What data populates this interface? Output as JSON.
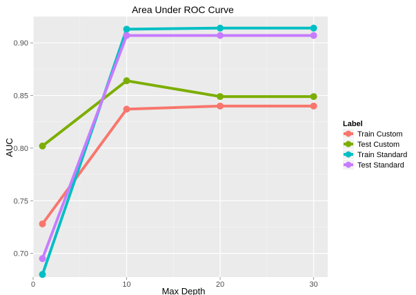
{
  "chart_data": {
    "type": "line",
    "title": "Area Under ROC Curve",
    "xlabel": "Max Depth",
    "ylabel": "AUC",
    "x": [
      1,
      10,
      20,
      30
    ],
    "xlim": [
      0,
      31.5
    ],
    "ylim": [
      0.6775,
      0.925
    ],
    "x_ticks": [
      0,
      10,
      20,
      30
    ],
    "x_tick_labels": [
      "0",
      "10",
      "20",
      "30"
    ],
    "y_ticks": [
      0.7,
      0.75,
      0.8,
      0.85,
      0.9
    ],
    "y_tick_labels": [
      "0.70",
      "0.75",
      "0.80",
      "0.85",
      "0.90"
    ],
    "grid": true,
    "legend": {
      "title": "Label",
      "position": "right"
    },
    "series": [
      {
        "name": "Train Custom",
        "color": "#F8766D",
        "values": [
          0.728,
          0.837,
          0.84,
          0.84
        ]
      },
      {
        "name": "Test Custom",
        "color": "#7CAE00",
        "values": [
          0.802,
          0.864,
          0.849,
          0.849
        ]
      },
      {
        "name": "Train Standard",
        "color": "#00BFC4",
        "values": [
          0.68,
          0.913,
          0.914,
          0.914
        ]
      },
      {
        "name": "Test Standard",
        "color": "#C77CFF",
        "values": [
          0.695,
          0.907,
          0.907,
          0.907
        ]
      }
    ]
  }
}
